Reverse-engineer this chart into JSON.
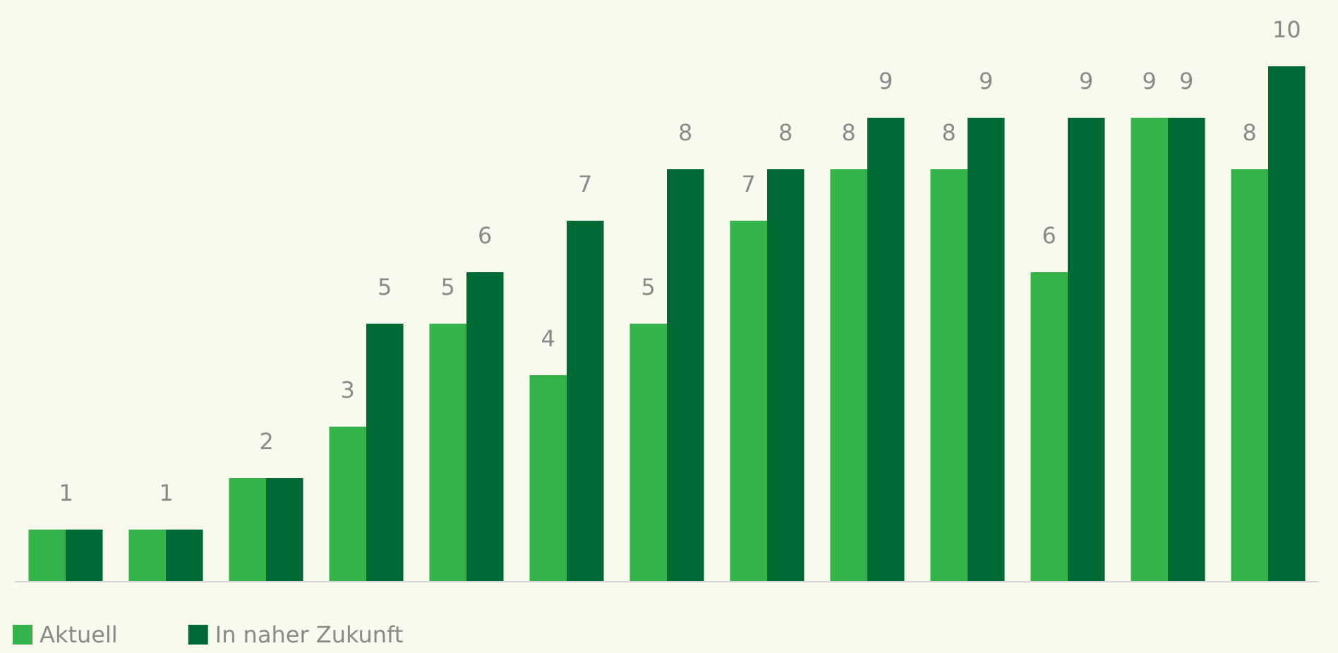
{
  "chart_data": {
    "type": "bar",
    "categories": [
      null,
      null,
      null,
      null,
      null,
      null,
      null,
      null,
      null,
      null,
      null,
      null,
      null
    ],
    "series": [
      {
        "name": "Aktuell",
        "color": "#33b34a",
        "values": [
          1,
          1,
          2,
          3,
          5,
          4,
          5,
          7,
          8,
          8,
          6,
          9,
          8
        ],
        "value_labels": [
          "1",
          "1",
          "2",
          "3",
          "5",
          "4",
          "5",
          "7",
          "8",
          "8",
          "6",
          "9",
          "8"
        ]
      },
      {
        "name": "In naher Zukunft",
        "color": "#006a35",
        "values": [
          1,
          1,
          2,
          5,
          6,
          7,
          8,
          8,
          9,
          9,
          9,
          9,
          10
        ],
        "value_labels": [
          null,
          null,
          null,
          "5",
          "6",
          "7",
          "8",
          "8",
          "9",
          "9",
          "9",
          "9",
          "10"
        ]
      }
    ],
    "ylim": [
      0,
      10
    ],
    "legend": "bottom left"
  }
}
